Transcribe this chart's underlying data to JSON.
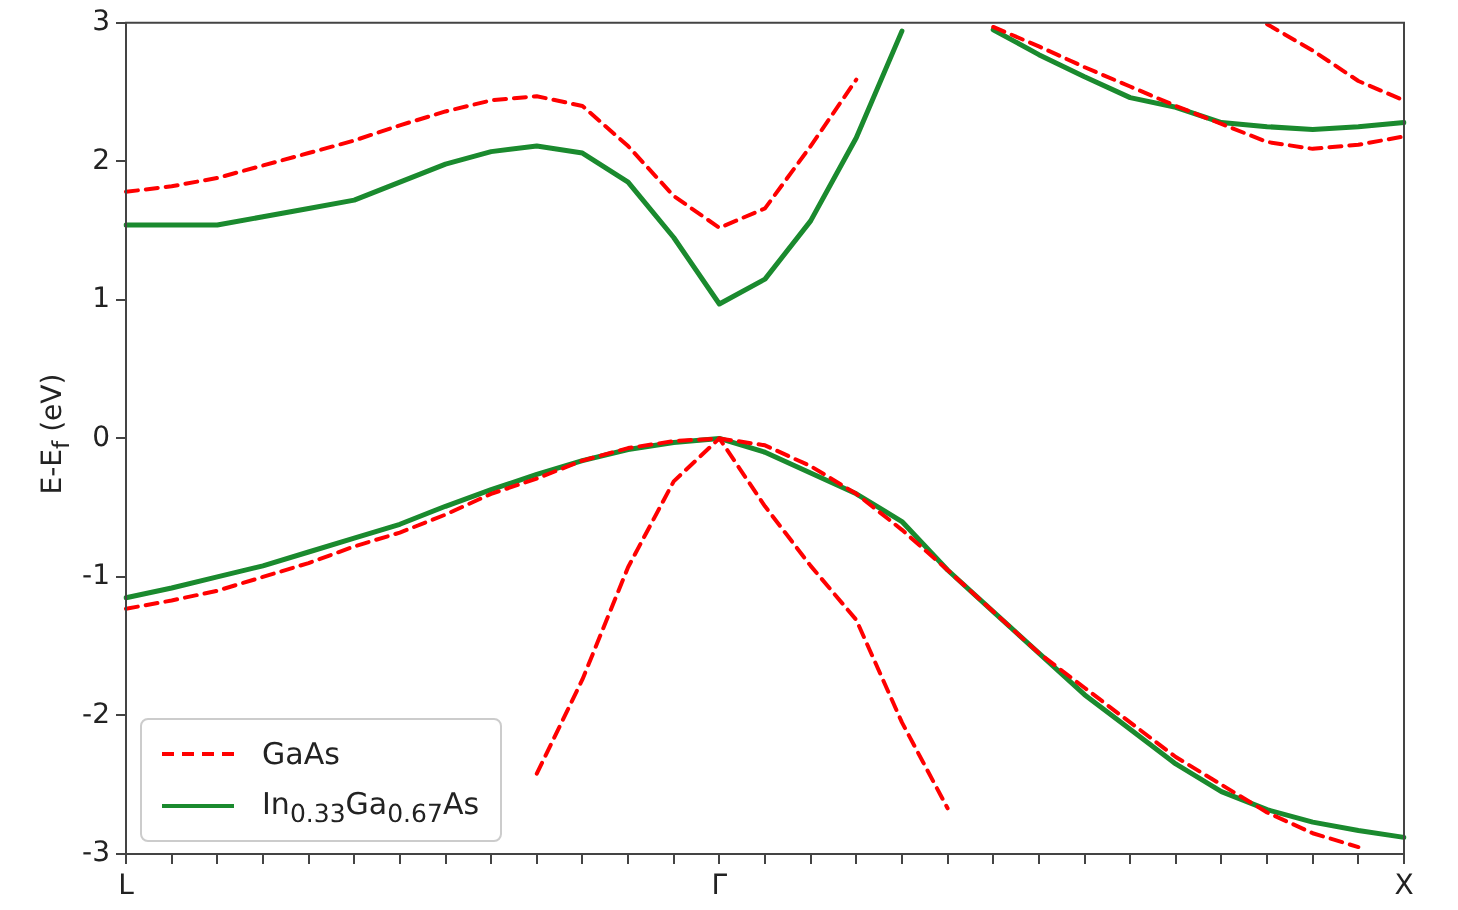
{
  "chart_data": {
    "type": "line",
    "ylabel": "E-E$_{f}$ (eV)",
    "categories": [
      "L",
      null,
      null,
      null,
      null,
      null,
      null,
      null,
      null,
      null,
      null,
      null,
      null,
      "Γ",
      null,
      null,
      null,
      null,
      null,
      null,
      null,
      null,
      null,
      null,
      null,
      null,
      null,
      null,
      "X"
    ],
    "ylim": [
      -3,
      3
    ],
    "yticks": [
      -3,
      -2,
      -1,
      0,
      1,
      2,
      3
    ],
    "grid": false,
    "legend": "bottom left",
    "marker": "none",
    "series": [
      {
        "name": "GaAs",
        "color": "#ff0000",
        "line_style": "dashed",
        "values": [
          1.78,
          1.82,
          1.88,
          1.97,
          2.06,
          2.15,
          2.26,
          2.36,
          2.44,
          2.47,
          2.4,
          2.11,
          1.75,
          1.52,
          1.66,
          2.11,
          2.59,
          null,
          null,
          2.97,
          2.83,
          2.68,
          2.54,
          2.4,
          2.27,
          2.14,
          2.09,
          2.12,
          2.18
        ]
      },
      {
        "color": "#ff0000",
        "line_style": "dashed",
        "values": [
          null,
          null,
          null,
          null,
          null,
          null,
          null,
          null,
          null,
          null,
          null,
          null,
          null,
          null,
          null,
          null,
          null,
          null,
          null,
          null,
          null,
          null,
          null,
          null,
          null,
          2.99,
          2.8,
          2.58,
          2.44
        ]
      },
      {
        "color": "#ff0000",
        "line_style": "dashed",
        "values": [
          -1.23,
          -1.17,
          -1.1,
          -1.0,
          -0.9,
          -0.78,
          -0.68,
          -0.55,
          -0.4,
          -0.29,
          -0.16,
          -0.07,
          -0.02,
          0,
          -0.05,
          -0.2,
          -0.4,
          -0.66,
          -0.95,
          -1.25,
          -1.55,
          -1.8,
          -2.05,
          -2.3,
          -2.5,
          -2.7,
          -2.85,
          -2.95,
          null
        ]
      },
      {
        "color": "#ff0000",
        "line_style": "dashed",
        "values": [
          null,
          null,
          null,
          null,
          null,
          null,
          null,
          null,
          null,
          -2.42,
          -1.74,
          -0.93,
          -0.31,
          0,
          -0.49,
          -0.92,
          -1.31,
          -2.05,
          -2.67,
          null,
          null,
          null,
          null,
          null,
          null,
          null,
          null,
          null,
          null
        ]
      },
      {
        "name": "In$_{0.33}$Ga$_{0.67}$As",
        "color": "#1a8a2e",
        "line_style": "solid",
        "values": [
          1.54,
          1.54,
          1.54,
          1.6,
          1.66,
          1.72,
          1.85,
          1.98,
          2.07,
          2.11,
          2.06,
          1.85,
          1.45,
          0.97,
          1.15,
          1.57,
          2.17,
          2.94,
          null,
          2.95,
          2.77,
          2.61,
          2.46,
          2.39,
          2.28,
          2.25,
          2.23,
          2.25,
          2.28
        ]
      },
      {
        "color": "#1a8a2e",
        "line_style": "solid",
        "values": [
          -1.15,
          -1.08,
          -1.0,
          -0.92,
          -0.82,
          -0.72,
          -0.62,
          -0.49,
          -0.37,
          -0.26,
          -0.16,
          -0.08,
          -0.03,
          0,
          -0.1,
          -0.25,
          -0.4,
          -0.6,
          -0.95,
          -1.25,
          -1.55,
          -1.85,
          -2.1,
          -2.35,
          -2.55,
          -2.68,
          -2.77,
          -2.83,
          -2.88
        ]
      }
    ]
  }
}
